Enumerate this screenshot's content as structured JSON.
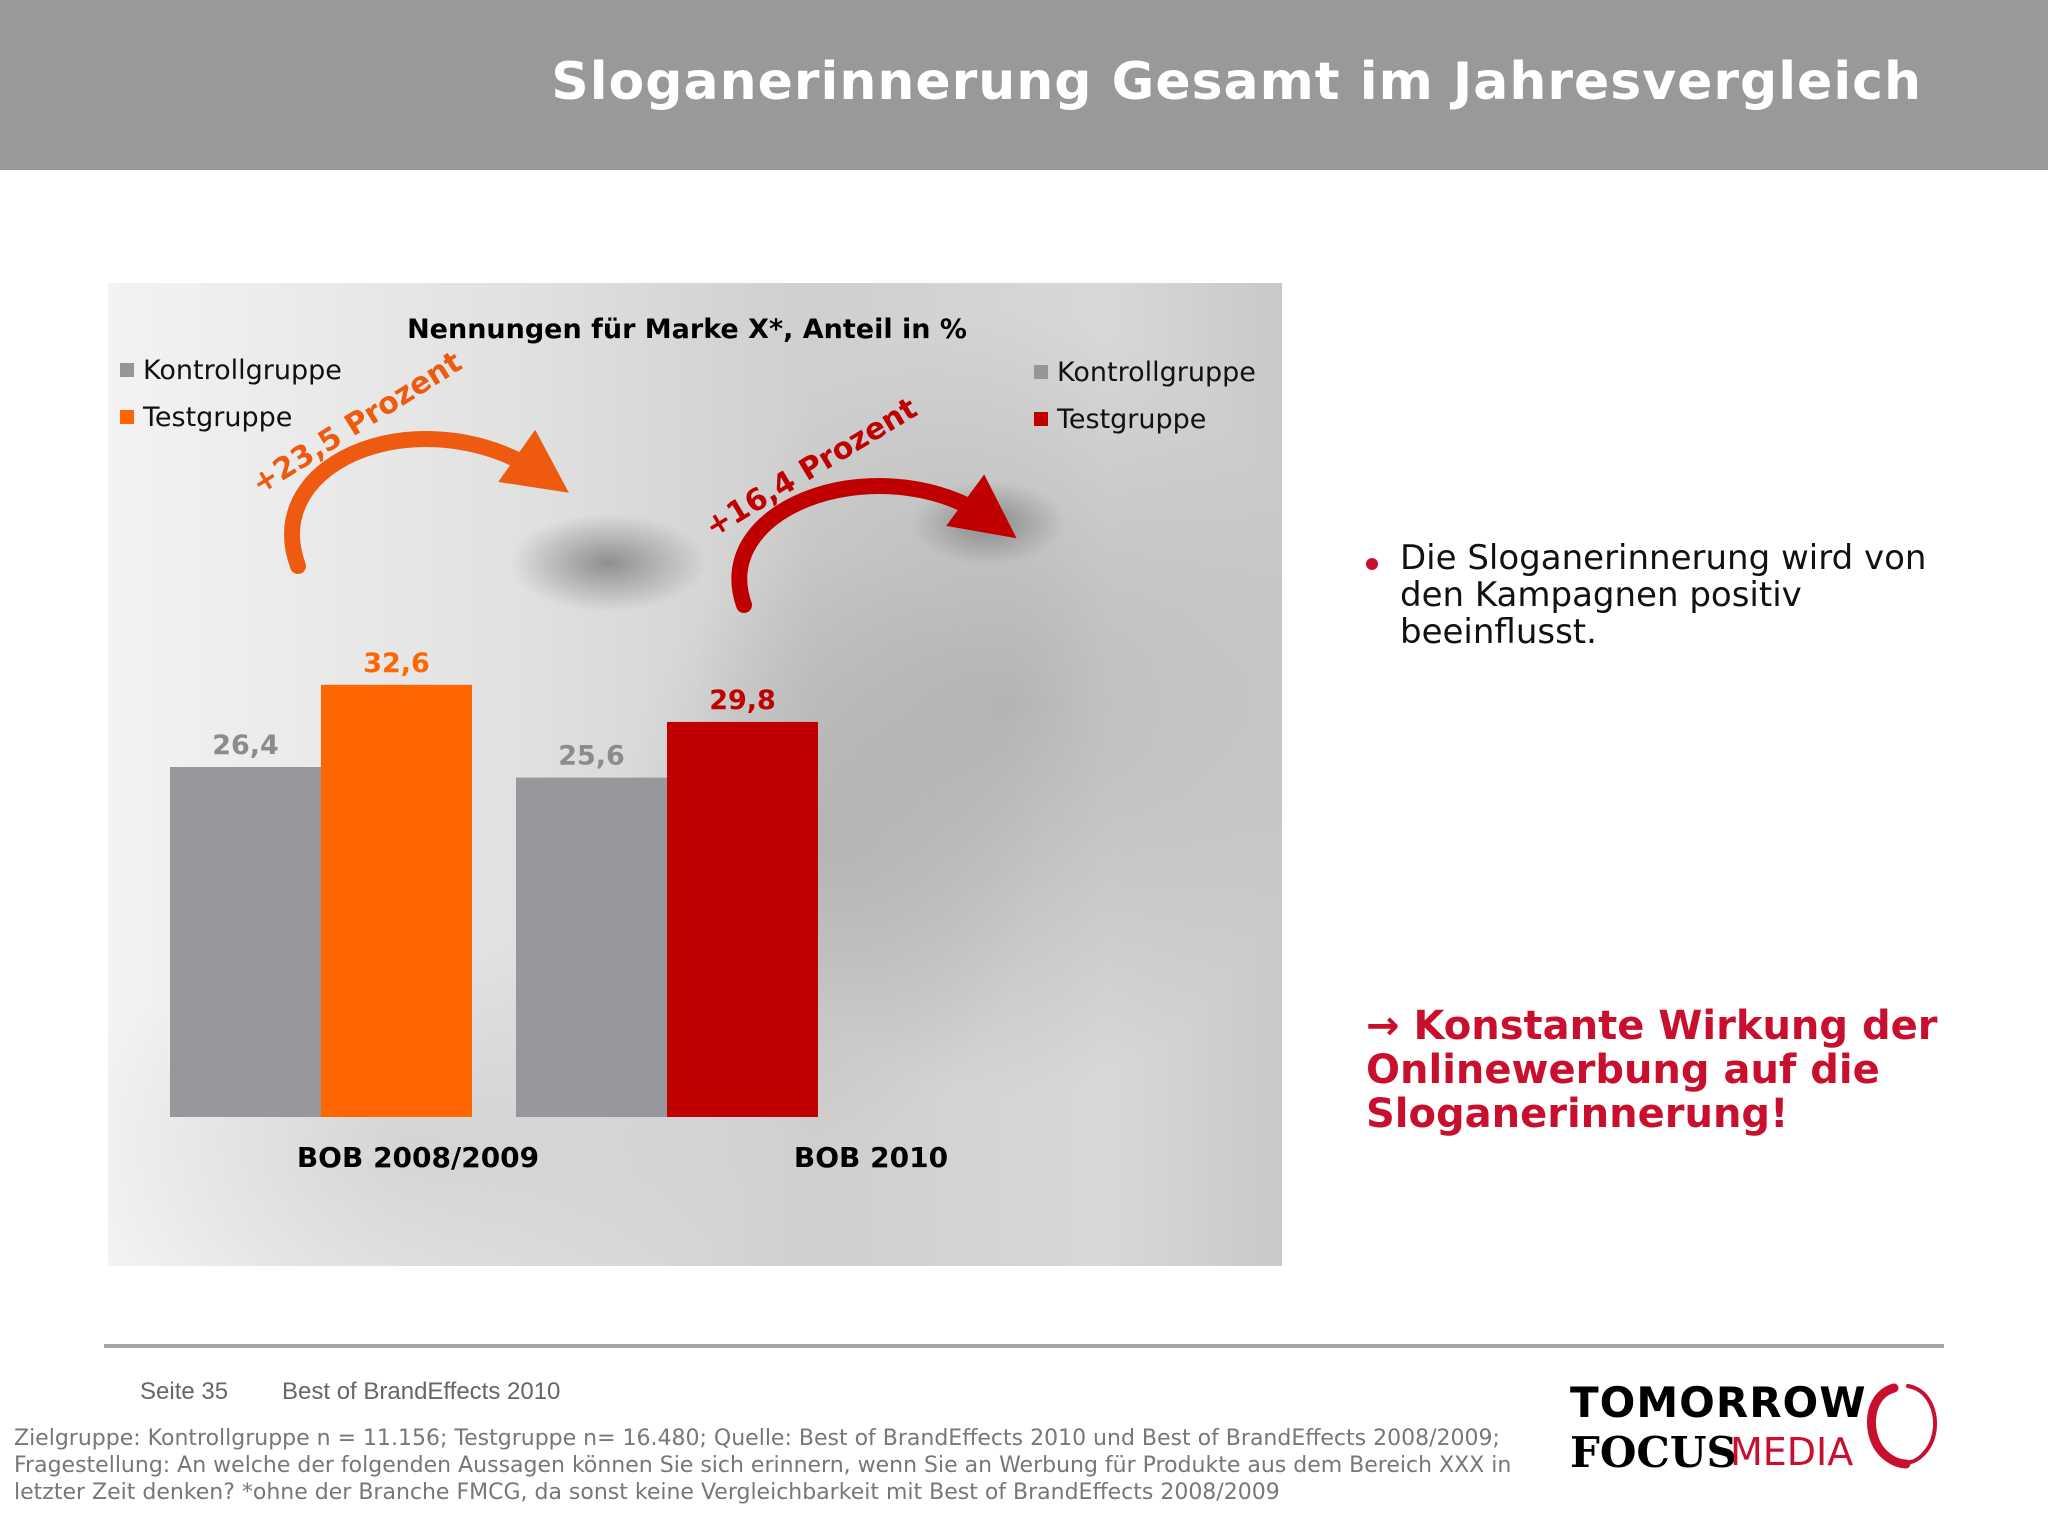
{
  "header": {
    "title": "Sloganerinnerung Gesamt im Jahresvergleich"
  },
  "chart_data": {
    "type": "bar",
    "title": "Nennungen für Marke X*, Anteil in %",
    "categories": [
      "BOB 2008/2009",
      "BOB 2010"
    ],
    "series": [
      {
        "name": "Kontrollgruppe",
        "values": [
          26.4,
          25.6
        ]
      },
      {
        "name": "Testgruppe",
        "values": [
          32.6,
          29.8
        ]
      }
    ],
    "value_labels": [
      [
        "26,4",
        "32,6"
      ],
      [
        "25,6",
        "29,8"
      ]
    ],
    "legends": [
      {
        "items": [
          "Kontrollgruppe",
          "Testgruppe"
        ],
        "colors": [
          "#969696",
          "#ff6600"
        ],
        "placement": "top-left"
      },
      {
        "items": [
          "Kontrollgruppe",
          "Testgruppe"
        ],
        "colors": [
          "#969696",
          "#c00000"
        ],
        "placement": "top-right"
      }
    ],
    "bar_colors": [
      [
        "#98989c",
        "#ff6600"
      ],
      [
        "#98989c",
        "#c00000"
      ]
    ],
    "annotations": [
      {
        "text": "+23,5 Prozent",
        "color": "#ee5a0f",
        "category": "BOB 2008/2009"
      },
      {
        "text": "+16,4 Prozent",
        "color": "#c00000",
        "category": "BOB 2010"
      }
    ],
    "ylim": [
      0,
      35
    ],
    "grid": false
  },
  "bullets": [
    "Die Sloganerinnerung wird von den Kampagnen positiv beeinflusst."
  ],
  "conclusion": {
    "arrow": "→",
    "text": "Konstante Wirkung der Onlinewerbung auf die Sloganerinnerung!"
  },
  "footer": {
    "page": "Seite 35",
    "source": "Best of BrandEffects 2010",
    "footnote": "Zielgruppe: Kontrollgruppe n = 11.156; Testgruppe n= 16.480; Quelle: Best of BrandEffects 2010 und Best of BrandEffects 2008/2009; Fragestellung: An welche der folgenden Aussagen können Sie sich erinnern, wenn Sie an Werbung für Produkte aus dem Bereich XXX in letzter Zeit denken? *ohne der Branche FMCG, da sonst keine Vergleichbarkeit mit Best of BrandEffects 2008/2009"
  },
  "logo": {
    "line1": "TOMORROW",
    "line2a": "FOCUS",
    "line2b": "MEDIA",
    "color": "#c8102e"
  }
}
